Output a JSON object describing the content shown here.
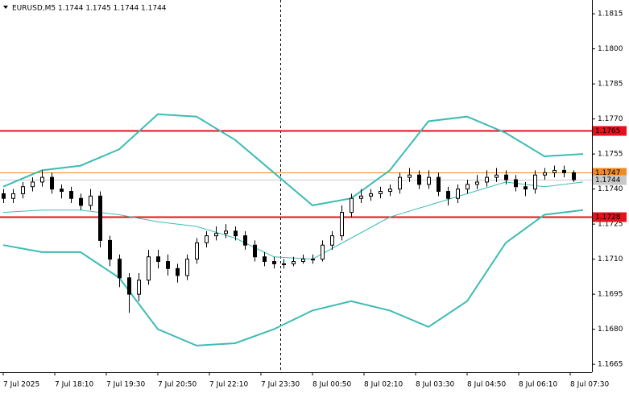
{
  "chart_data": {
    "type": "candlestick",
    "title": "EURUSD,M5 1.1744 1.1745 1.1744 1.1744",
    "x": [
      0,
      3,
      6,
      9,
      12,
      15,
      18,
      21,
      24,
      27,
      30,
      33,
      36,
      39,
      42,
      45,
      48,
      51,
      54,
      57,
      60,
      63,
      66,
      69,
      72,
      75,
      78,
      81,
      84,
      87,
      90,
      93,
      96,
      99,
      102,
      105,
      108,
      111,
      114,
      117,
      120,
      123,
      126,
      129,
      132,
      135,
      138,
      141,
      144,
      147,
      150,
      153,
      156,
      159,
      162,
      165,
      168,
      171,
      174,
      177
    ],
    "open": [
      1.1738,
      1.1736,
      1.1738,
      1.1741,
      1.1743,
      1.1745,
      1.174,
      1.1739,
      1.1736,
      1.1733,
      1.1737,
      1.1718,
      1.171,
      1.1702,
      1.1695,
      1.1701,
      1.1711,
      1.1709,
      1.1706,
      1.1703,
      1.171,
      1.1717,
      1.172,
      1.1721,
      1.1722,
      1.172,
      1.1716,
      1.1711,
      1.1709,
      1.1708,
      1.1708,
      1.1709,
      1.171,
      1.171,
      1.1716,
      1.172,
      1.173,
      1.1736,
      1.1737,
      1.1738,
      1.1739,
      1.174,
      1.1745,
      1.1746,
      1.1742,
      1.1745,
      1.1739,
      1.1736,
      1.174,
      1.1742,
      1.1743,
      1.1745,
      1.1746,
      1.1744,
      1.1741,
      1.174,
      1.1746,
      1.1747,
      1.1748,
      1.1747
    ],
    "high": [
      1.174,
      1.174,
      1.1743,
      1.1745,
      1.1748,
      1.1747,
      1.1742,
      1.1741,
      1.1738,
      1.174,
      1.1739,
      1.172,
      1.1712,
      1.1704,
      1.1704,
      1.1714,
      1.1714,
      1.1712,
      1.1708,
      1.1712,
      1.1719,
      1.1722,
      1.1724,
      1.1725,
      1.1724,
      1.1722,
      1.1718,
      1.1713,
      1.1711,
      1.171,
      1.1711,
      1.1712,
      1.1712,
      1.1718,
      1.1722,
      1.1733,
      1.1738,
      1.174,
      1.174,
      1.1741,
      1.1742,
      1.1747,
      1.1749,
      1.1748,
      1.1748,
      1.1747,
      1.1741,
      1.1742,
      1.1744,
      1.1746,
      1.1748,
      1.1749,
      1.1748,
      1.1746,
      1.1743,
      1.1748,
      1.1749,
      1.175,
      1.175,
      1.1748
    ],
    "low": [
      1.1734,
      1.1734,
      1.1736,
      1.1739,
      1.1741,
      1.1738,
      1.1736,
      1.1734,
      1.1731,
      1.1731,
      1.1715,
      1.1707,
      1.1698,
      1.1687,
      1.1692,
      1.1699,
      1.1706,
      1.1703,
      1.17,
      1.1701,
      1.1708,
      1.1715,
      1.1718,
      1.1719,
      1.1718,
      1.1714,
      1.1709,
      1.1707,
      1.1706,
      1.1706,
      1.1707,
      1.1708,
      1.1708,
      1.1709,
      1.1714,
      1.1718,
      1.1728,
      1.1734,
      1.1735,
      1.1736,
      1.1737,
      1.1738,
      1.1743,
      1.174,
      1.174,
      1.1737,
      1.1733,
      1.1734,
      1.1738,
      1.174,
      1.1741,
      1.1743,
      1.1742,
      1.1739,
      1.1737,
      1.1738,
      1.1744,
      1.1745,
      1.1745,
      1.1743
    ],
    "close": [
      1.1736,
      1.1738,
      1.1741,
      1.1743,
      1.1745,
      1.174,
      1.1739,
      1.1736,
      1.1733,
      1.1737,
      1.1718,
      1.171,
      1.1702,
      1.1695,
      1.1701,
      1.1711,
      1.1709,
      1.1706,
      1.1703,
      1.171,
      1.1717,
      1.172,
      1.1721,
      1.1722,
      1.172,
      1.1716,
      1.1711,
      1.1709,
      1.1708,
      1.1708,
      1.1709,
      1.171,
      1.171,
      1.1716,
      1.172,
      1.173,
      1.1736,
      1.1737,
      1.1738,
      1.1739,
      1.174,
      1.1745,
      1.1746,
      1.1742,
      1.1745,
      1.1739,
      1.1736,
      1.174,
      1.1742,
      1.1743,
      1.1745,
      1.1746,
      1.1744,
      1.1741,
      1.174,
      1.1746,
      1.1747,
      1.1748,
      1.1747,
      1.1744
    ],
    "candle_color": "#000000",
    "bands": {
      "x": [
        0,
        12,
        24,
        36,
        48,
        60,
        72,
        84,
        96,
        108,
        120,
        132,
        144,
        156,
        168,
        180
      ],
      "color": "#3cbcb4",
      "upper": [
        1.1741,
        1.1748,
        1.175,
        1.1757,
        1.1772,
        1.1771,
        1.1761,
        1.1747,
        1.1733,
        1.1736,
        1.1748,
        1.1769,
        1.1771,
        1.1764,
        1.1754,
        1.1755
      ],
      "middle": [
        1.173,
        1.1731,
        1.1731,
        1.1729,
        1.1726,
        1.1724,
        1.1719,
        1.1711,
        1.171,
        1.1719,
        1.1728,
        1.1733,
        1.1738,
        1.1743,
        1.1741,
        1.1743
      ],
      "lower": [
        1.1716,
        1.1713,
        1.1713,
        1.1702,
        1.168,
        1.1673,
        1.1674,
        1.168,
        1.1688,
        1.1692,
        1.1688,
        1.1681,
        1.1692,
        1.1717,
        1.1729,
        1.1731
      ]
    },
    "levels": [
      {
        "value": 1.1765,
        "color": "#e8101c"
      },
      {
        "value": 1.1728,
        "color": "#e8101c"
      },
      {
        "value": 1.1747,
        "color": "#f08a24"
      },
      {
        "value": 1.1744,
        "color": "#c8c8c8"
      }
    ],
    "vline_x": 86,
    "xlim": [
      -1,
      182.75
    ],
    "xticks": [
      {
        "value": 0,
        "label": "7 Jul 2025"
      },
      {
        "value": 16,
        "label": "7 Jul 18:10"
      },
      {
        "value": 32,
        "label": "7 Jul 19:30"
      },
      {
        "value": 48,
        "label": "7 Jul 20:50"
      },
      {
        "value": 64,
        "label": "7 Jul 22:10"
      },
      {
        "value": 80,
        "label": "7 Jul 23:30"
      },
      {
        "value": 96,
        "label": "8 Jul 00:50"
      },
      {
        "value": 112,
        "label": "8 Jul 02:10"
      },
      {
        "value": 128,
        "label": "8 Jul 03:30"
      },
      {
        "value": 144,
        "label": "8 Jul 04:50"
      },
      {
        "value": 160,
        "label": "8 Jul 06:10"
      },
      {
        "value": 176,
        "label": "8 Jul 07:30"
      }
    ],
    "ylim": [
      1.16616,
      1.18209
    ],
    "yticks": [
      1.1665,
      {
        "value": 1.168,
        "label": "1.1680"
      },
      1.1695,
      {
        "value": 1.171,
        "label": "1.1710"
      },
      1.1725,
      {
        "value": 1.174,
        "label": "1.1740"
      },
      1.1755,
      {
        "value": 1.177,
        "label": "1.1770"
      },
      1.1785,
      {
        "value": 1.18,
        "label": "1.1800"
      },
      1.1815
    ]
  }
}
